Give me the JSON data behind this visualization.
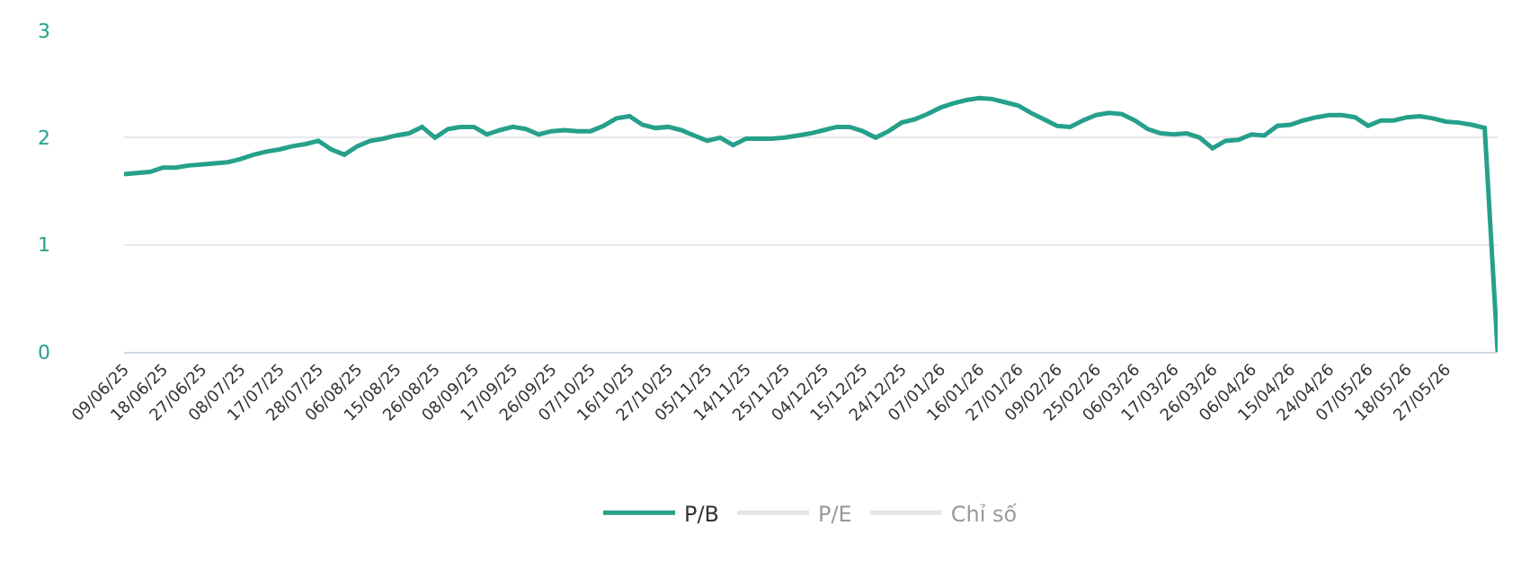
{
  "chart_data": {
    "type": "line",
    "categories": [
      "09/06/25",
      null,
      null,
      "18/06/25",
      null,
      null,
      "27/06/25",
      null,
      null,
      "08/07/25",
      null,
      null,
      "17/07/25",
      null,
      null,
      "28/07/25",
      null,
      null,
      "06/08/25",
      null,
      null,
      "15/08/25",
      null,
      null,
      "26/08/25",
      null,
      null,
      "08/09/25",
      null,
      null,
      "17/09/25",
      null,
      null,
      "26/09/25",
      null,
      null,
      "07/10/25",
      null,
      null,
      "16/10/25",
      null,
      null,
      "27/10/25",
      null,
      null,
      "05/11/25",
      null,
      null,
      "14/11/25",
      null,
      null,
      "25/11/25",
      null,
      null,
      "04/12/25",
      null,
      null,
      "15/12/25",
      null,
      null,
      "24/12/25",
      null,
      null,
      "07/01/26",
      null,
      null,
      "16/01/26",
      null,
      null,
      "27/01/26",
      null,
      null,
      "09/02/26",
      null,
      null,
      "25/02/26",
      null,
      null,
      "06/03/26",
      null,
      null,
      "17/03/26",
      null,
      null,
      "26/03/26",
      null,
      null,
      "06/04/26",
      null,
      null,
      "15/04/26",
      null,
      null,
      "24/04/26",
      null,
      null,
      "07/05/26",
      null,
      null,
      "18/05/26",
      null,
      null,
      "27/05/26",
      null,
      null,
      null,
      null
    ],
    "series": [
      {
        "name": "P/B",
        "color": "#26a08a",
        "values": [
          1.66,
          1.67,
          1.68,
          1.72,
          1.72,
          1.74,
          1.75,
          1.76,
          1.77,
          1.8,
          1.84,
          1.87,
          1.89,
          1.92,
          1.94,
          1.97,
          1.89,
          1.84,
          1.92,
          1.97,
          1.99,
          2.02,
          2.04,
          2.1,
          2.0,
          2.08,
          2.1,
          2.1,
          2.03,
          2.07,
          2.1,
          2.08,
          2.03,
          2.06,
          2.07,
          2.06,
          2.06,
          2.11,
          2.18,
          2.2,
          2.12,
          2.09,
          2.1,
          2.07,
          2.02,
          1.97,
          2.0,
          1.93,
          1.99,
          1.99,
          1.99,
          2.0,
          2.02,
          2.04,
          2.07,
          2.1,
          2.1,
          2.06,
          2.0,
          2.06,
          2.14,
          2.17,
          2.22,
          2.28,
          2.32,
          2.35,
          2.37,
          2.36,
          2.33,
          2.3,
          2.23,
          2.17,
          2.11,
          2.1,
          2.16,
          2.21,
          2.23,
          2.22,
          2.16,
          2.08,
          2.04,
          2.03,
          2.04,
          2.0,
          1.9,
          1.97,
          1.98,
          2.03,
          2.02,
          2.11,
          2.12,
          2.16,
          2.19,
          2.21,
          2.21,
          2.19,
          2.11,
          2.16,
          2.16,
          2.19,
          2.2,
          2.18,
          2.15,
          2.14,
          2.12,
          2.09,
          0
        ]
      },
      {
        "name": "P/E",
        "color": "#cccccc",
        "values": [
          null,
          null,
          null,
          null,
          null,
          null,
          null,
          null,
          null,
          null,
          null,
          null,
          null,
          null,
          null,
          null,
          null,
          null,
          null,
          null,
          null,
          null,
          null,
          null,
          null,
          null,
          null,
          null,
          null,
          null,
          null,
          null,
          null,
          null,
          null,
          null,
          null,
          null,
          null,
          null,
          null,
          null,
          null,
          null,
          null,
          null,
          null,
          null,
          null,
          null,
          null,
          null,
          null,
          null,
          null,
          null,
          null,
          null,
          null,
          null,
          null,
          null,
          null,
          null,
          null,
          null,
          null,
          null,
          null,
          null,
          null,
          null,
          null,
          null,
          null,
          null,
          null,
          null,
          null,
          null,
          null,
          null,
          null,
          null,
          null,
          null,
          null,
          null,
          null,
          null,
          null,
          null,
          null,
          null,
          null,
          null,
          null,
          null,
          null,
          null,
          null,
          null,
          null,
          null,
          null,
          null,
          null
        ]
      },
      {
        "name": "Chỉ số",
        "color": "#cccccc",
        "values": [
          null,
          null,
          null,
          null,
          null,
          null,
          null,
          null,
          null,
          null,
          null,
          null,
          null,
          null,
          null,
          null,
          null,
          null,
          null,
          null,
          null,
          null,
          null,
          null,
          null,
          null,
          null,
          null,
          null,
          null,
          null,
          null,
          null,
          null,
          null,
          null,
          null,
          null,
          null,
          null,
          null,
          null,
          null,
          null,
          null,
          null,
          null,
          null,
          null,
          null,
          null,
          null,
          null,
          null,
          null,
          null,
          null,
          null,
          null,
          null,
          null,
          null,
          null,
          null,
          null,
          null,
          null,
          null,
          null,
          null,
          null,
          null,
          null,
          null,
          null,
          null,
          null,
          null,
          null,
          null,
          null,
          null,
          null,
          null,
          null,
          null,
          null,
          null,
          null,
          null,
          null,
          null,
          null,
          null,
          null,
          null,
          null,
          null,
          null,
          null,
          null,
          null,
          null,
          null,
          null,
          null,
          null
        ]
      }
    ],
    "ylim": [
      0,
      3
    ],
    "yticks": [
      0,
      1,
      2,
      3
    ],
    "grid": "y",
    "legend": "bottom",
    "marker": "none",
    "line_style": "solid"
  }
}
